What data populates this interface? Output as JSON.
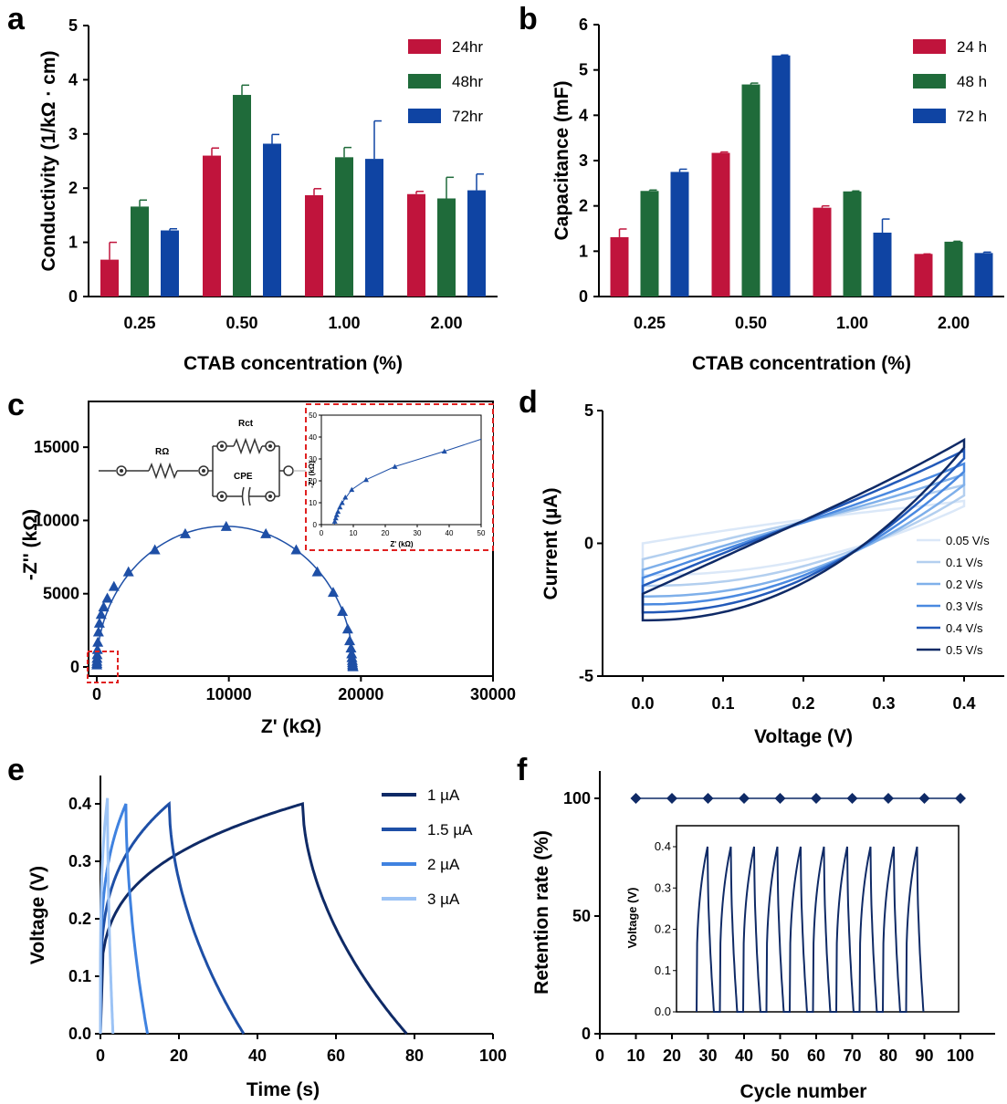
{
  "chart_data": [
    {
      "panel": "a",
      "type": "bar",
      "xlabel": "CTAB concentration (%)",
      "ylabel": "Conductivity (1/kΩ · cm)",
      "ylim": [
        0,
        5
      ],
      "yticks": [
        0,
        1,
        2,
        3,
        4,
        5
      ],
      "categories": [
        "0.25",
        "0.50",
        "1.00",
        "2.00"
      ],
      "series": [
        {
          "name": "24hr",
          "color": "#c0143c",
          "values": [
            0.68,
            2.6,
            1.87,
            1.89
          ],
          "errors": [
            0.32,
            0.14,
            0.12,
            0.05
          ]
        },
        {
          "name": "48hr",
          "color": "#1f6b3a",
          "values": [
            1.66,
            3.72,
            2.57,
            1.81
          ],
          "errors": [
            0.12,
            0.18,
            0.18,
            0.39
          ]
        },
        {
          "name": "72hr",
          "color": "#0f44a3",
          "values": [
            1.22,
            2.82,
            2.54,
            1.96
          ],
          "errors": [
            0.03,
            0.17,
            0.7,
            0.3
          ]
        }
      ],
      "legend_position": "top-right"
    },
    {
      "panel": "b",
      "type": "bar",
      "xlabel": "CTAB concentration (%)",
      "ylabel": "Capacitance (mF)",
      "ylim": [
        0,
        6
      ],
      "yticks": [
        0,
        1,
        2,
        3,
        4,
        5,
        6
      ],
      "categories": [
        "0.25",
        "0.50",
        "1.00",
        "2.00"
      ],
      "series": [
        {
          "name": "24 h",
          "color": "#c0143c",
          "values": [
            1.31,
            3.17,
            1.96,
            0.94
          ],
          "errors": [
            0.18,
            0.02,
            0.04,
            0.0
          ]
        },
        {
          "name": "48 h",
          "color": "#1f6b3a",
          "values": [
            2.33,
            4.68,
            2.32,
            1.21
          ],
          "errors": [
            0.02,
            0.03,
            0.01,
            0.01
          ]
        },
        {
          "name": "72 h",
          "color": "#0f44a3",
          "values": [
            2.75,
            5.32,
            1.41,
            0.96
          ],
          "errors": [
            0.06,
            0.01,
            0.3,
            0.02
          ]
        }
      ],
      "legend_position": "top-right"
    },
    {
      "panel": "c",
      "type": "scatter",
      "xlabel": "Z' (kΩ)",
      "ylabel": "-Z'' (kΩ)",
      "xlim": [
        0,
        30000
      ],
      "ylim": [
        0,
        17500
      ],
      "xticks": [
        0,
        10000,
        20000,
        30000
      ],
      "yticks": [
        0,
        5000,
        10000,
        15000
      ],
      "semicircle_fit": {
        "r_omega": 5,
        "r_ct": 19400,
        "depression": 1.0
      },
      "points_x": [
        5,
        8,
        12,
        20,
        30,
        50,
        80,
        130,
        200,
        330,
        520,
        800,
        1300,
        2400,
        4400,
        6700,
        9800,
        12800,
        15100,
        16700,
        17900,
        18600,
        19000,
        19150,
        19250,
        19300,
        19320,
        19350,
        19360,
        19370,
        19380,
        19390,
        19400
      ],
      "points_y": [
        150,
        250,
        400,
        600,
        850,
        1200,
        1700,
        2400,
        3000,
        3600,
        4100,
        4700,
        5500,
        6500,
        8000,
        9100,
        9600,
        9100,
        8000,
        6500,
        5100,
        3800,
        2600,
        1800,
        1300,
        900,
        650,
        450,
        300,
        180,
        100,
        50,
        20
      ],
      "circuit_labels": {
        "r_omega": "RΩ",
        "r_ct": "Rct",
        "cpe": "CPE"
      },
      "inset": {
        "xlabel": "Z' (kΩ)",
        "ylabel": "-Z'' (kΩ)",
        "xlim": [
          0,
          50
        ],
        "ylim": [
          0,
          50
        ],
        "xticks": [
          0,
          10,
          20,
          30,
          40,
          50
        ],
        "yticks": [
          0,
          10,
          20,
          30,
          40,
          50
        ],
        "points_x": [
          4.2,
          4.5,
          4.8,
          5.2,
          5.8,
          6.5,
          7.5,
          9.5,
          14,
          23,
          38.5
        ],
        "points_y": [
          1.5,
          3.0,
          4.5,
          6.0,
          8.0,
          10.0,
          12.5,
          16.0,
          20.5,
          26.5,
          33.5
        ],
        "curve_end": [
          50,
          39
        ]
      }
    },
    {
      "panel": "d",
      "type": "line",
      "xlabel": "Voltage (V)",
      "ylabel": "Current (µA)",
      "xlim": [
        -0.05,
        0.45
      ],
      "ylim": [
        -5,
        5
      ],
      "xticks": [
        0.0,
        0.1,
        0.2,
        0.3,
        0.4
      ],
      "xtick_labels": [
        "0.0",
        "0.1",
        "0.2",
        "0.3",
        "0.4"
      ],
      "yticks": [
        -5,
        0,
        5
      ],
      "series": [
        {
          "name": "0.05 V/s",
          "color": "#dbe8f8",
          "upper_start": 0.0,
          "upper_end": 1.6,
          "lower_start": -1.2,
          "lower_end": 1.4
        },
        {
          "name": "0.1 V/s",
          "color": "#b3cfef",
          "upper_start": -0.6,
          "upper_end": 2.2,
          "lower_start": -1.6,
          "lower_end": 1.8
        },
        {
          "name": "0.2 V/s",
          "color": "#7fb0ea",
          "upper_start": -1.0,
          "upper_end": 2.6,
          "lower_start": -2.0,
          "lower_end": 2.2
        },
        {
          "name": "0.3 V/s",
          "color": "#4a89e0",
          "upper_start": -1.3,
          "upper_end": 3.0,
          "lower_start": -2.3,
          "lower_end": 2.7
        },
        {
          "name": "0.4 V/s",
          "color": "#2259b8",
          "upper_start": -1.6,
          "upper_end": 3.5,
          "lower_start": -2.6,
          "lower_end": 3.2
        },
        {
          "name": "0.5 V/s",
          "color": "#0f2a66",
          "upper_start": -1.9,
          "upper_end": 3.9,
          "lower_start": -2.9,
          "lower_end": 3.6
        }
      ],
      "legend_position": "bottom-right"
    },
    {
      "panel": "e",
      "type": "line",
      "xlabel": "Time (s)",
      "ylabel": "Voltage (V)",
      "xlim": [
        0,
        100
      ],
      "ylim": [
        0,
        0.42
      ],
      "xticks": [
        0,
        20,
        40,
        60,
        80,
        100
      ],
      "yticks": [
        0.0,
        0.1,
        0.2,
        0.3,
        0.4
      ],
      "ytick_labels": [
        "0.0",
        "0.1",
        "0.2",
        "0.3",
        "0.4"
      ],
      "series": [
        {
          "name": "1 µA",
          "color": "#0f2a66",
          "peak_time": 51.5,
          "end_time": 78,
          "peak_v": 0.4
        },
        {
          "name": "1.5 µA",
          "color": "#1e4fa6",
          "peak_time": 17.5,
          "end_time": 36.5,
          "peak_v": 0.4
        },
        {
          "name": "2 µA",
          "color": "#3f82e0",
          "peak_time": 6.5,
          "end_time": 12,
          "peak_v": 0.4
        },
        {
          "name": "3 µA",
          "color": "#9cc3f5",
          "peak_time": 1.8,
          "end_time": 3.2,
          "peak_v": 0.41
        }
      ],
      "legend_position": "top-right"
    },
    {
      "panel": "f",
      "type": "line",
      "xlabel": "Cycle number",
      "ylabel": "Retention rate (%)",
      "xlim": [
        0,
        110
      ],
      "ylim": [
        0,
        110
      ],
      "xticks": [
        0,
        10,
        20,
        30,
        40,
        50,
        60,
        70,
        80,
        90,
        100
      ],
      "yticks": [
        0,
        50,
        100
      ],
      "x": [
        10,
        20,
        30,
        40,
        50,
        60,
        70,
        80,
        90,
        100
      ],
      "values": [
        100,
        100,
        100,
        100,
        100,
        100,
        100,
        100,
        100,
        100
      ],
      "color": "#0f2a66",
      "inset": {
        "ylabel": "Voltage (V)",
        "ylim": [
          0,
          0.4
        ],
        "yticks": [
          0.0,
          0.1,
          0.2,
          0.3,
          0.4
        ],
        "ytick_labels": [
          "0.0",
          "0.1",
          "0.2",
          "0.3",
          "0.4"
        ],
        "cycles": 10,
        "peak_v": 0.4
      }
    }
  ]
}
